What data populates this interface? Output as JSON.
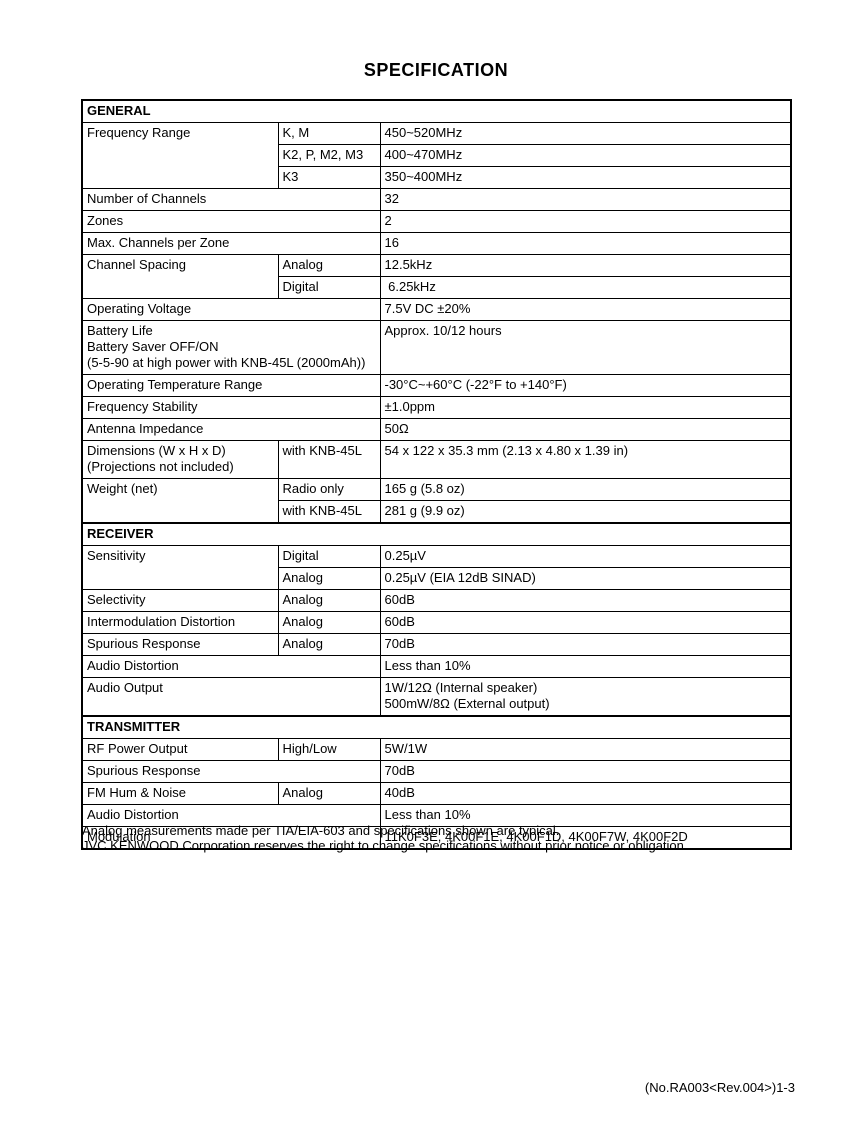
{
  "title": "SPECIFICATION",
  "table": {
    "sections": [
      {
        "name": "GENERAL",
        "rows": [
          {
            "label": "Frequency Range",
            "labelRowspan": 3,
            "sub": "K, M",
            "value": "450~520MHz"
          },
          {
            "sub": "K2, P, M2, M3",
            "value": "400~470MHz"
          },
          {
            "sub": "K3",
            "value": "350~400MHz"
          },
          {
            "label": "Number of Channels",
            "value": "32"
          },
          {
            "label": "Zones",
            "value": "2"
          },
          {
            "label": "Max. Channels per Zone",
            "value": "16"
          },
          {
            "label": "Channel Spacing",
            "labelRowspan": 2,
            "sub": "Analog",
            "value": "12.5kHz"
          },
          {
            "sub": "Digital",
            "value": " 6.25kHz"
          },
          {
            "label": "Operating Voltage",
            "value": "7.5V DC ±20%"
          },
          {
            "label": "Battery Life\nBattery Saver OFF/ON\n(5-5-90 at high power with KNB-45L (2000mAh))",
            "value": "Approx. 10/12 hours"
          },
          {
            "label": "Operating Temperature Range",
            "value": "-30°C~+60°C (-22°F to +140°F)"
          },
          {
            "label": "Frequency Stability",
            "value": "±1.0ppm"
          },
          {
            "label": "Antenna Impedance",
            "value": "50Ω"
          },
          {
            "label": "Dimensions (W x H x D)\n(Projections not included)",
            "sub": "with KNB-45L",
            "value": "54 x 122 x 35.3 mm (2.13 x 4.80 x 1.39 in)"
          },
          {
            "label": "Weight (net)",
            "labelRowspan": 2,
            "sub": "Radio only",
            "value": "165 g (5.8 oz)"
          },
          {
            "sub": "with KNB-45L",
            "value": "281 g (9.9 oz)"
          }
        ]
      },
      {
        "name": "RECEIVER",
        "rows": [
          {
            "label": "Sensitivity",
            "labelRowspan": 2,
            "sub": "Digital",
            "value": "0.25µV"
          },
          {
            "sub": "Analog",
            "value": "0.25µV (EIA 12dB SINAD)"
          },
          {
            "label": "Selectivity",
            "sub": "Analog",
            "value": "60dB"
          },
          {
            "label": "Intermodulation Distortion",
            "sub": "Analog",
            "value": "60dB"
          },
          {
            "label": "Spurious Response",
            "sub": "Analog",
            "value": "70dB"
          },
          {
            "label": "Audio Distortion",
            "value": "Less than 10%"
          },
          {
            "label": "Audio Output",
            "value": "1W/12Ω (Internal speaker)\n500mW/8Ω (External output)"
          }
        ]
      },
      {
        "name": "TRANSMITTER",
        "rows": [
          {
            "label": "RF Power Output",
            "sub": "High/Low",
            "value": "5W/1W"
          },
          {
            "label": "Spurious Response",
            "value": "70dB"
          },
          {
            "label": "FM Hum & Noise",
            "sub": "Analog",
            "value": "40dB"
          },
          {
            "label": "Audio Distortion",
            "value": "Less than 10%"
          },
          {
            "label": "Modulation",
            "value": "11K0F3E, 4K00F1E, 4K00F1D, 4K00F7W, 4K00F2D"
          }
        ]
      }
    ]
  },
  "notes": [
    "Analog measurements made per TIA/EIA-603 and specifications shown are typical.",
    "JVC KENWOOD Corporation reserves the right to change specifications without prior notice or obligation."
  ],
  "footer": {
    "page_number": "(No.RA003<Rev.004>)1-3"
  }
}
